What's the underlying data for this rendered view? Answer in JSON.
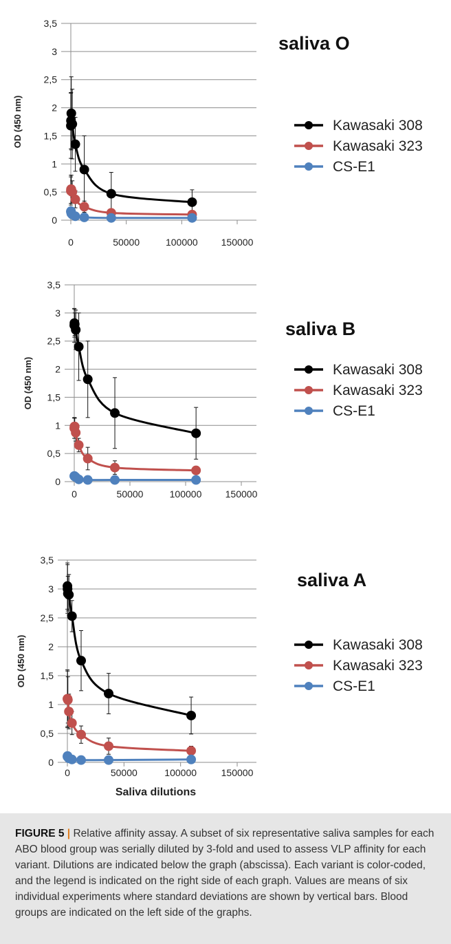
{
  "chart_data": [
    {
      "type": "line",
      "title": "saliva O",
      "xlabel": "",
      "ylabel": "OD (450 nm)",
      "xlim": [
        -10000,
        150000
      ],
      "ylim": [
        0,
        3.5
      ],
      "xticks": [
        "0",
        "50000",
        "100000",
        "150000"
      ],
      "yticks": [
        "0",
        "0,5",
        "1",
        "1,5",
        "2",
        "2,5",
        "3",
        "3,5"
      ],
      "x": [
        50,
        150,
        450,
        1350,
        4050,
        12150,
        36450,
        109350
      ],
      "series": [
        {
          "name": "Kawasaki 308",
          "color": "#000000",
          "values": [
            1.68,
            1.77,
            1.9,
            1.71,
            1.35,
            0.9,
            0.47,
            0.32
          ],
          "errors": [
            0.58,
            0.5,
            0.65,
            0.62,
            0.48,
            0.6,
            0.38,
            0.22
          ]
        },
        {
          "name": "Kawasaki 323",
          "color": "#c0504d",
          "values": [
            0.52,
            0.55,
            0.55,
            0.5,
            0.37,
            0.24,
            0.13,
            0.1
          ],
          "errors": [
            0.25,
            0.25,
            0.25,
            0.2,
            0.15,
            0.1,
            0.06,
            0.05
          ]
        },
        {
          "name": "CS-E1",
          "color": "#4f81bd",
          "values": [
            0.15,
            0.16,
            0.12,
            0.1,
            0.07,
            0.05,
            0.04,
            0.04
          ],
          "errors": [
            0.06,
            0.06,
            0.05,
            0.04,
            0.03,
            0.02,
            0.02,
            0.02
          ]
        }
      ]
    },
    {
      "type": "line",
      "title": "saliva B",
      "xlabel": "",
      "ylabel": "OD (450 nm)",
      "xlim": [
        -10000,
        150000
      ],
      "ylim": [
        0,
        3.5
      ],
      "xticks": [
        "0",
        "50000",
        "100000",
        "150000"
      ],
      "yticks": [
        "0",
        "0,5",
        "1",
        "1,5",
        "2",
        "2,5",
        "3",
        "3,5"
      ],
      "x": [
        50,
        150,
        450,
        1350,
        4050,
        12150,
        36450,
        109350
      ],
      "series": [
        {
          "name": "Kawasaki 308",
          "color": "#000000",
          "values": [
            2.78,
            2.82,
            2.8,
            2.7,
            2.4,
            1.82,
            1.22,
            0.86
          ],
          "errors": [
            0.3,
            0.25,
            0.2,
            0.35,
            0.6,
            0.68,
            0.63,
            0.46
          ]
        },
        {
          "name": "Kawasaki 323",
          "color": "#c0504d",
          "values": [
            0.95,
            0.98,
            0.98,
            0.87,
            0.65,
            0.41,
            0.25,
            0.2
          ],
          "errors": [
            0.18,
            0.16,
            0.15,
            0.15,
            0.12,
            0.2,
            0.12,
            0.06
          ]
        },
        {
          "name": "CS-E1",
          "color": "#4f81bd",
          "values": [
            0.1,
            0.1,
            0.09,
            0.08,
            0.04,
            0.03,
            0.03,
            0.03
          ],
          "errors": [
            0.04,
            0.04,
            0.03,
            0.03,
            0.02,
            0.01,
            0.01,
            0.01
          ]
        }
      ]
    },
    {
      "type": "line",
      "title": "saliva A",
      "xlabel": "Saliva dilutions",
      "ylabel": "OD (450 nm)",
      "xlim": [
        -10000,
        150000
      ],
      "ylim": [
        0,
        3.5
      ],
      "xticks": [
        "0",
        "50000",
        "100000",
        "150000"
      ],
      "yticks": [
        "0",
        "0,5",
        "1",
        "1,5",
        "2",
        "2,5",
        "3",
        "3,5"
      ],
      "x": [
        50,
        150,
        450,
        1350,
        4050,
        12150,
        36450,
        109350
      ],
      "series": [
        {
          "name": "Kawasaki 308",
          "color": "#000000",
          "values": [
            3.05,
            3.0,
            2.92,
            2.9,
            2.53,
            1.76,
            1.19,
            0.81
          ],
          "errors": [
            0.4,
            0.42,
            0.3,
            0.35,
            0.27,
            0.52,
            0.35,
            0.32
          ]
        },
        {
          "name": "Kawasaki 323",
          "color": "#c0504d",
          "values": [
            1.1,
            1.1,
            1.08,
            0.88,
            0.68,
            0.48,
            0.28,
            0.2
          ],
          "errors": [
            0.5,
            0.48,
            0.4,
            0.3,
            0.2,
            0.15,
            0.14,
            0.08
          ]
        },
        {
          "name": "CS-E1",
          "color": "#4f81bd",
          "values": [
            0.1,
            0.11,
            0.09,
            0.07,
            0.05,
            0.04,
            0.04,
            0.05
          ],
          "errors": [
            0.04,
            0.04,
            0.03,
            0.03,
            0.02,
            0.02,
            0.02,
            0.02
          ]
        }
      ]
    }
  ],
  "caption": {
    "label": "FIGURE 5",
    "separator": "|",
    "text": "Relative affinity assay. A subset of six representative saliva samples for each ABO blood group was serially diluted by 3-fold and used to assess VLP affinity for each variant. Dilutions are indicated below the graph (abscissa). Each variant is color-coded, and the legend is indicated on the right side of each graph. Values are means of six individual experiments where standard deviations are shown by vertical bars. Blood groups are indicated on the left side of the graphs."
  }
}
